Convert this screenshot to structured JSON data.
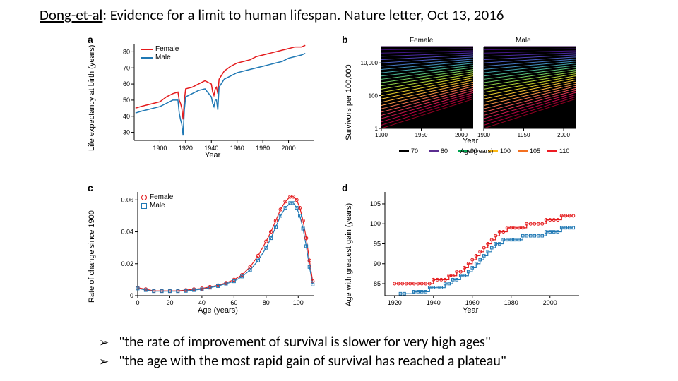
{
  "title_prefix": "Dong-et-al",
  "title_rest": ": Evidence for a limit to human lifespan. Nature letter, Oct 13, 2016",
  "bullets": [
    "\"the rate of improvement of survival  is slower for very high ages\"",
    "\"the age with the most rapid gain of survival has reached a plateau\""
  ],
  "colors": {
    "female": "#e41a1c",
    "male": "#1f78b4",
    "axis": "#000000",
    "bg": "#ffffff"
  },
  "panel_a": {
    "label": "a",
    "type": "line",
    "xlabel": "Year",
    "ylabel": "Life expectancy at birth (years)",
    "xlim": [
      1880,
      2020
    ],
    "ylim": [
      25,
      85
    ],
    "xticks": [
      1900,
      1920,
      1940,
      1960,
      1980,
      2000
    ],
    "yticks": [
      30,
      40,
      50,
      60,
      70,
      80
    ],
    "legend": [
      {
        "label": "Female",
        "color": "#e41a1c"
      },
      {
        "label": "Male",
        "color": "#1f78b4"
      }
    ],
    "female": [
      [
        1881,
        45
      ],
      [
        1885,
        46
      ],
      [
        1890,
        47
      ],
      [
        1895,
        48
      ],
      [
        1900,
        49
      ],
      [
        1905,
        52
      ],
      [
        1910,
        54
      ],
      [
        1914,
        55
      ],
      [
        1915,
        50
      ],
      [
        1916,
        48
      ],
      [
        1917,
        45
      ],
      [
        1918,
        38
      ],
      [
        1919,
        50
      ],
      [
        1920,
        57
      ],
      [
        1925,
        58
      ],
      [
        1930,
        60
      ],
      [
        1935,
        62
      ],
      [
        1940,
        60
      ],
      [
        1941,
        55
      ],
      [
        1942,
        53
      ],
      [
        1943,
        57
      ],
      [
        1944,
        58
      ],
      [
        1945,
        54
      ],
      [
        1946,
        63
      ],
      [
        1950,
        68
      ],
      [
        1955,
        71
      ],
      [
        1960,
        73
      ],
      [
        1965,
        74
      ],
      [
        1970,
        75
      ],
      [
        1975,
        77
      ],
      [
        1980,
        78
      ],
      [
        1985,
        79
      ],
      [
        1990,
        80
      ],
      [
        1995,
        81
      ],
      [
        2000,
        82
      ],
      [
        2005,
        83
      ],
      [
        2010,
        83
      ],
      [
        2013,
        84
      ]
    ],
    "male": [
      [
        1881,
        42
      ],
      [
        1885,
        43
      ],
      [
        1890,
        44
      ],
      [
        1895,
        45
      ],
      [
        1900,
        46
      ],
      [
        1905,
        48
      ],
      [
        1910,
        50
      ],
      [
        1914,
        50
      ],
      [
        1915,
        42
      ],
      [
        1916,
        38
      ],
      [
        1917,
        35
      ],
      [
        1918,
        28
      ],
      [
        1919,
        44
      ],
      [
        1920,
        52
      ],
      [
        1925,
        54
      ],
      [
        1930,
        56
      ],
      [
        1935,
        57
      ],
      [
        1940,
        52
      ],
      [
        1941,
        48
      ],
      [
        1942,
        46
      ],
      [
        1943,
        50
      ],
      [
        1944,
        50
      ],
      [
        1945,
        44
      ],
      [
        1946,
        58
      ],
      [
        1950,
        63
      ],
      [
        1955,
        65
      ],
      [
        1960,
        67
      ],
      [
        1965,
        68
      ],
      [
        1970,
        69
      ],
      [
        1975,
        70
      ],
      [
        1980,
        71
      ],
      [
        1985,
        72
      ],
      [
        1990,
        73
      ],
      [
        1995,
        74
      ],
      [
        2000,
        76
      ],
      [
        2005,
        77
      ],
      [
        2010,
        78
      ],
      [
        2013,
        79
      ]
    ]
  },
  "panel_b": {
    "label": "b",
    "type": "line-small-multiples",
    "xlabel": "Year",
    "ylabel": "Survivors per 100,000",
    "subtitles": [
      "Female",
      "Male"
    ],
    "xlim": [
      1900,
      2015
    ],
    "ylim_log": [
      1,
      100000
    ],
    "xticks": [
      1900,
      1950,
      2000
    ],
    "yticks": [
      1,
      100,
      10000
    ],
    "ytick_labels": [
      "1",
      "100",
      "10,000"
    ],
    "age_legend": [
      {
        "age": "70",
        "color": "#000000"
      },
      {
        "age": "80",
        "color": "#5b2d90"
      },
      {
        "age": "90",
        "color": "#00a651"
      },
      {
        "age": "100",
        "color": "#fdb813"
      },
      {
        "age": "105",
        "color": "#f37021"
      },
      {
        "age": "110",
        "color": "#ed1c24"
      }
    ],
    "spectrum_colors": [
      "#2d004b",
      "#3a0a6b",
      "#44168a",
      "#4b2aa3",
      "#4d42b5",
      "#4a5ec0",
      "#4578c2",
      "#4190bd",
      "#42a5ad",
      "#4ab796",
      "#5bc47b",
      "#74cd5f",
      "#92d348",
      "#b2d637",
      "#cfd52e",
      "#e7cf2c",
      "#f5c232",
      "#f9ae3b",
      "#f89345",
      "#f3744d",
      "#ea5452",
      "#de3452",
      "#cf184e",
      "#bd0544",
      "#a80035",
      "#900022"
    ]
  },
  "panel_c": {
    "label": "c",
    "type": "scatter-line",
    "xlabel": "Age (years)",
    "ylabel": "Rate of change since 1900",
    "xlim": [
      0,
      110
    ],
    "ylim": [
      0,
      0.065
    ],
    "xticks": [
      0,
      20,
      40,
      60,
      80,
      100
    ],
    "yticks": [
      0,
      0.02,
      0.04,
      0.06
    ],
    "legend": [
      {
        "label": "Female",
        "color": "#e41a1c",
        "marker": "circle"
      },
      {
        "label": "Male",
        "color": "#1f78b4",
        "marker": "square"
      }
    ],
    "female": [
      [
        0,
        0.005
      ],
      [
        5,
        0.004
      ],
      [
        10,
        0.003
      ],
      [
        15,
        0.003
      ],
      [
        20,
        0.003
      ],
      [
        25,
        0.003
      ],
      [
        30,
        0.0035
      ],
      [
        35,
        0.004
      ],
      [
        40,
        0.0045
      ],
      [
        45,
        0.0055
      ],
      [
        50,
        0.0065
      ],
      [
        55,
        0.008
      ],
      [
        60,
        0.01
      ],
      [
        65,
        0.013
      ],
      [
        70,
        0.018
      ],
      [
        75,
        0.025
      ],
      [
        80,
        0.034
      ],
      [
        83,
        0.04
      ],
      [
        86,
        0.047
      ],
      [
        89,
        0.054
      ],
      [
        92,
        0.059
      ],
      [
        95,
        0.062
      ],
      [
        97,
        0.062
      ],
      [
        99,
        0.06
      ],
      [
        101,
        0.055
      ],
      [
        103,
        0.047
      ],
      [
        105,
        0.036
      ],
      [
        107,
        0.022
      ],
      [
        109,
        0.009
      ]
    ],
    "male": [
      [
        0,
        0.0045
      ],
      [
        5,
        0.0035
      ],
      [
        10,
        0.0028
      ],
      [
        15,
        0.0028
      ],
      [
        20,
        0.0028
      ],
      [
        25,
        0.0028
      ],
      [
        30,
        0.003
      ],
      [
        35,
        0.0035
      ],
      [
        40,
        0.004
      ],
      [
        45,
        0.005
      ],
      [
        50,
        0.006
      ],
      [
        55,
        0.0075
      ],
      [
        60,
        0.009
      ],
      [
        65,
        0.012
      ],
      [
        70,
        0.016
      ],
      [
        75,
        0.022
      ],
      [
        80,
        0.03
      ],
      [
        83,
        0.036
      ],
      [
        86,
        0.043
      ],
      [
        89,
        0.05
      ],
      [
        92,
        0.055
      ],
      [
        95,
        0.058
      ],
      [
        97,
        0.058
      ],
      [
        99,
        0.055
      ],
      [
        101,
        0.05
      ],
      [
        103,
        0.042
      ],
      [
        105,
        0.031
      ],
      [
        107,
        0.018
      ],
      [
        109,
        0.007
      ]
    ]
  },
  "panel_d": {
    "label": "d",
    "type": "step-scatter",
    "xlabel": "Year",
    "ylabel": "Age with greatest gain (years)",
    "xlim": [
      1915,
      2015
    ],
    "ylim": [
      82,
      108
    ],
    "xticks": [
      1920,
      1940,
      1960,
      1980,
      2000
    ],
    "yticks": [
      85,
      90,
      95,
      100,
      105
    ],
    "female_color": "#e41a1c",
    "male_color": "#1f78b4",
    "female": [
      [
        1920,
        85
      ],
      [
        1922,
        85
      ],
      [
        1924,
        85
      ],
      [
        1926,
        85
      ],
      [
        1928,
        85
      ],
      [
        1930,
        85
      ],
      [
        1932,
        85
      ],
      [
        1934,
        85
      ],
      [
        1936,
        85
      ],
      [
        1938,
        85
      ],
      [
        1940,
        86
      ],
      [
        1942,
        86
      ],
      [
        1944,
        86
      ],
      [
        1946,
        86
      ],
      [
        1948,
        87
      ],
      [
        1950,
        87
      ],
      [
        1952,
        88
      ],
      [
        1954,
        88
      ],
      [
        1956,
        89
      ],
      [
        1958,
        90
      ],
      [
        1960,
        91
      ],
      [
        1962,
        92
      ],
      [
        1964,
        93
      ],
      [
        1966,
        94
      ],
      [
        1968,
        95
      ],
      [
        1970,
        96
      ],
      [
        1972,
        97
      ],
      [
        1974,
        98
      ],
      [
        1976,
        98
      ],
      [
        1978,
        99
      ],
      [
        1980,
        99
      ],
      [
        1982,
        99
      ],
      [
        1984,
        99
      ],
      [
        1986,
        99
      ],
      [
        1988,
        100
      ],
      [
        1990,
        100
      ],
      [
        1992,
        100
      ],
      [
        1994,
        100
      ],
      [
        1996,
        100
      ],
      [
        1998,
        101
      ],
      [
        2000,
        101
      ],
      [
        2002,
        101
      ],
      [
        2004,
        101
      ],
      [
        2006,
        102
      ],
      [
        2008,
        102
      ],
      [
        2010,
        102
      ],
      [
        2012,
        102
      ]
    ],
    "male": [
      [
        1923,
        82.5
      ],
      [
        1925,
        82.5
      ],
      [
        1930,
        83
      ],
      [
        1932,
        83
      ],
      [
        1934,
        83
      ],
      [
        1936,
        83
      ],
      [
        1938,
        84
      ],
      [
        1940,
        84
      ],
      [
        1942,
        84
      ],
      [
        1944,
        84
      ],
      [
        1946,
        85
      ],
      [
        1948,
        85
      ],
      [
        1950,
        86
      ],
      [
        1952,
        86
      ],
      [
        1954,
        87
      ],
      [
        1956,
        87
      ],
      [
        1958,
        88
      ],
      [
        1960,
        89
      ],
      [
        1962,
        90
      ],
      [
        1964,
        91
      ],
      [
        1966,
        92
      ],
      [
        1968,
        93
      ],
      [
        1970,
        94
      ],
      [
        1972,
        95
      ],
      [
        1974,
        95
      ],
      [
        1976,
        96
      ],
      [
        1978,
        96
      ],
      [
        1980,
        96
      ],
      [
        1982,
        96
      ],
      [
        1984,
        96
      ],
      [
        1986,
        97
      ],
      [
        1988,
        97
      ],
      [
        1990,
        97
      ],
      [
        1992,
        97
      ],
      [
        1994,
        97
      ],
      [
        1996,
        97
      ],
      [
        1998,
        98
      ],
      [
        2000,
        98
      ],
      [
        2002,
        98
      ],
      [
        2004,
        98
      ],
      [
        2006,
        99
      ],
      [
        2008,
        99
      ],
      [
        2010,
        99
      ],
      [
        2012,
        99
      ]
    ]
  }
}
